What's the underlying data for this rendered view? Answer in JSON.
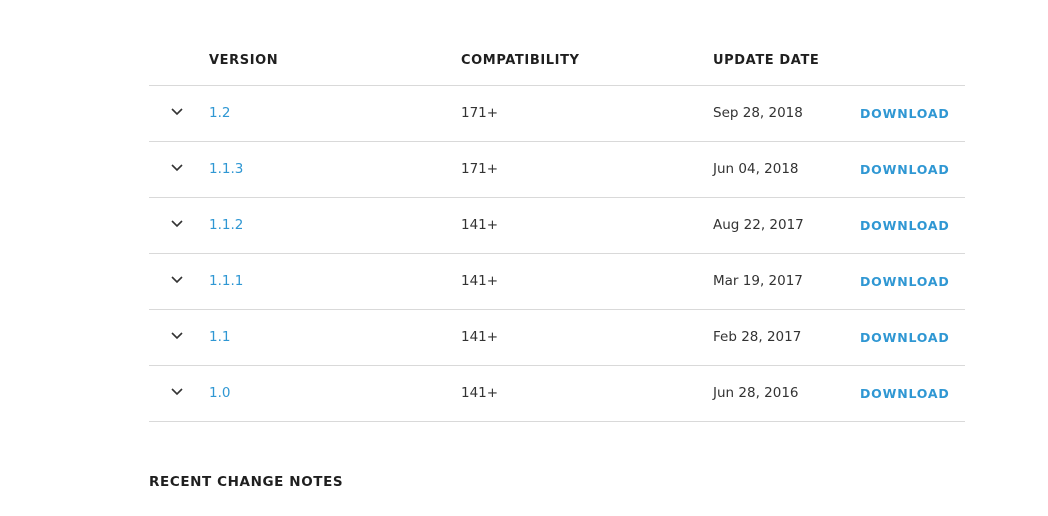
{
  "colors": {
    "link": "#2f97d3",
    "divider": "#d9d9d9",
    "text": "#333333",
    "heading": "#1f1f1f"
  },
  "table": {
    "headers": {
      "version": "VERSION",
      "compatibility": "COMPATIBILITY",
      "update_date": "UPDATE DATE"
    },
    "download_label": "DOWNLOAD",
    "expand_icon": "chevron-down-icon",
    "rows": [
      {
        "version": "1.2",
        "compatibility": "171+",
        "date": "Sep 28, 2018"
      },
      {
        "version": "1.1.3",
        "compatibility": "171+",
        "date": "Jun 04, 2018"
      },
      {
        "version": "1.1.2",
        "compatibility": "141+",
        "date": "Aug 22, 2017"
      },
      {
        "version": "1.1.1",
        "compatibility": "141+",
        "date": "Mar 19, 2017"
      },
      {
        "version": "1.1",
        "compatibility": "141+",
        "date": "Feb 28, 2017"
      },
      {
        "version": "1.0",
        "compatibility": "141+",
        "date": "Jun 28, 2016"
      }
    ]
  },
  "change_notes": {
    "title": "RECENT CHANGE NOTES"
  }
}
